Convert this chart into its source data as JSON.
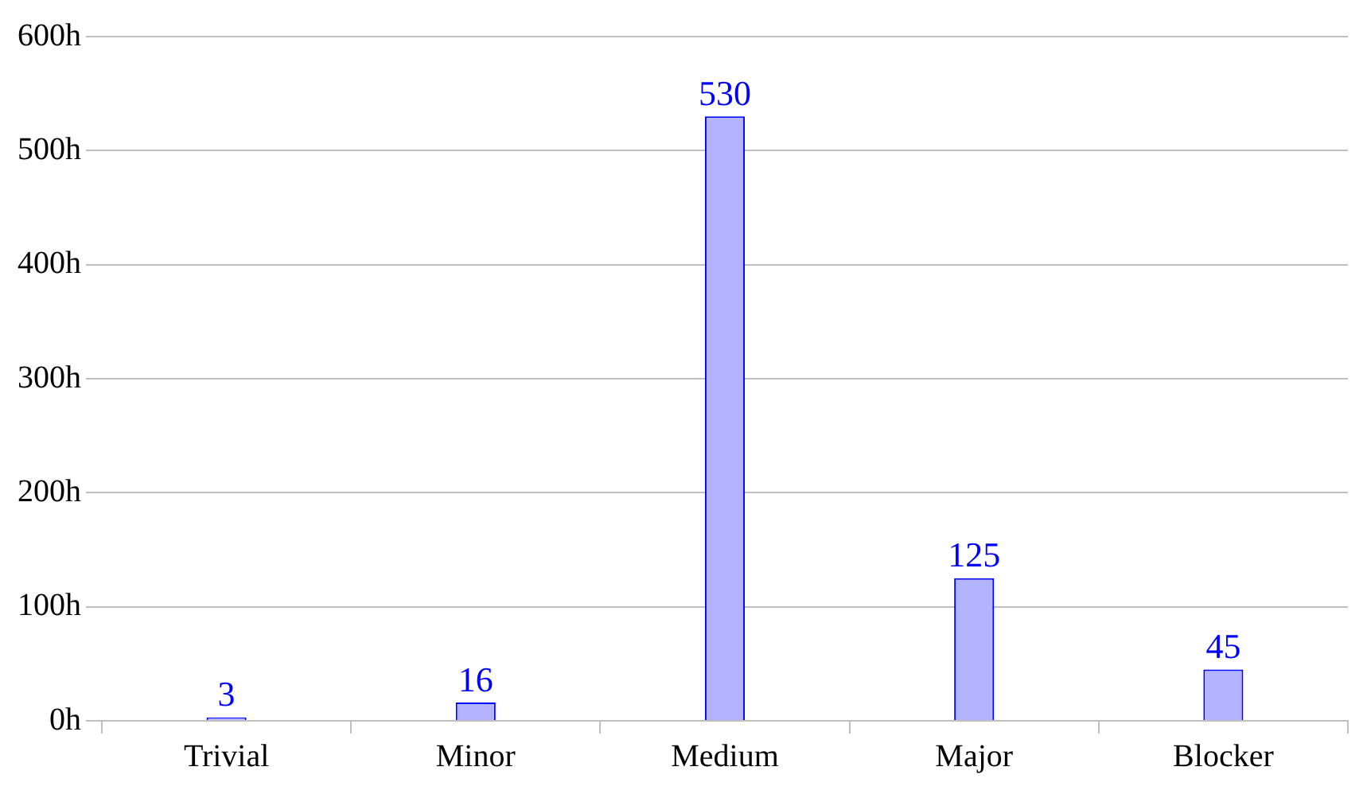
{
  "chart_data": {
    "type": "bar",
    "categories": [
      "Trivial",
      "Minor",
      "Medium",
      "Major",
      "Blocker"
    ],
    "values": [
      3,
      16,
      530,
      125,
      45
    ],
    "color": "#b3b3ff",
    "ylim": [
      0,
      600
    ],
    "yticks": [
      {
        "value": 0,
        "label": "0h"
      },
      {
        "value": 100,
        "label": "100h"
      },
      {
        "value": 200,
        "label": "200h"
      },
      {
        "value": 300,
        "label": "300h"
      },
      {
        "value": 400,
        "label": "400h"
      },
      {
        "value": 500,
        "label": "500h"
      },
      {
        "value": 600,
        "label": "600h"
      }
    ],
    "grid": "y",
    "data_labels": true
  }
}
